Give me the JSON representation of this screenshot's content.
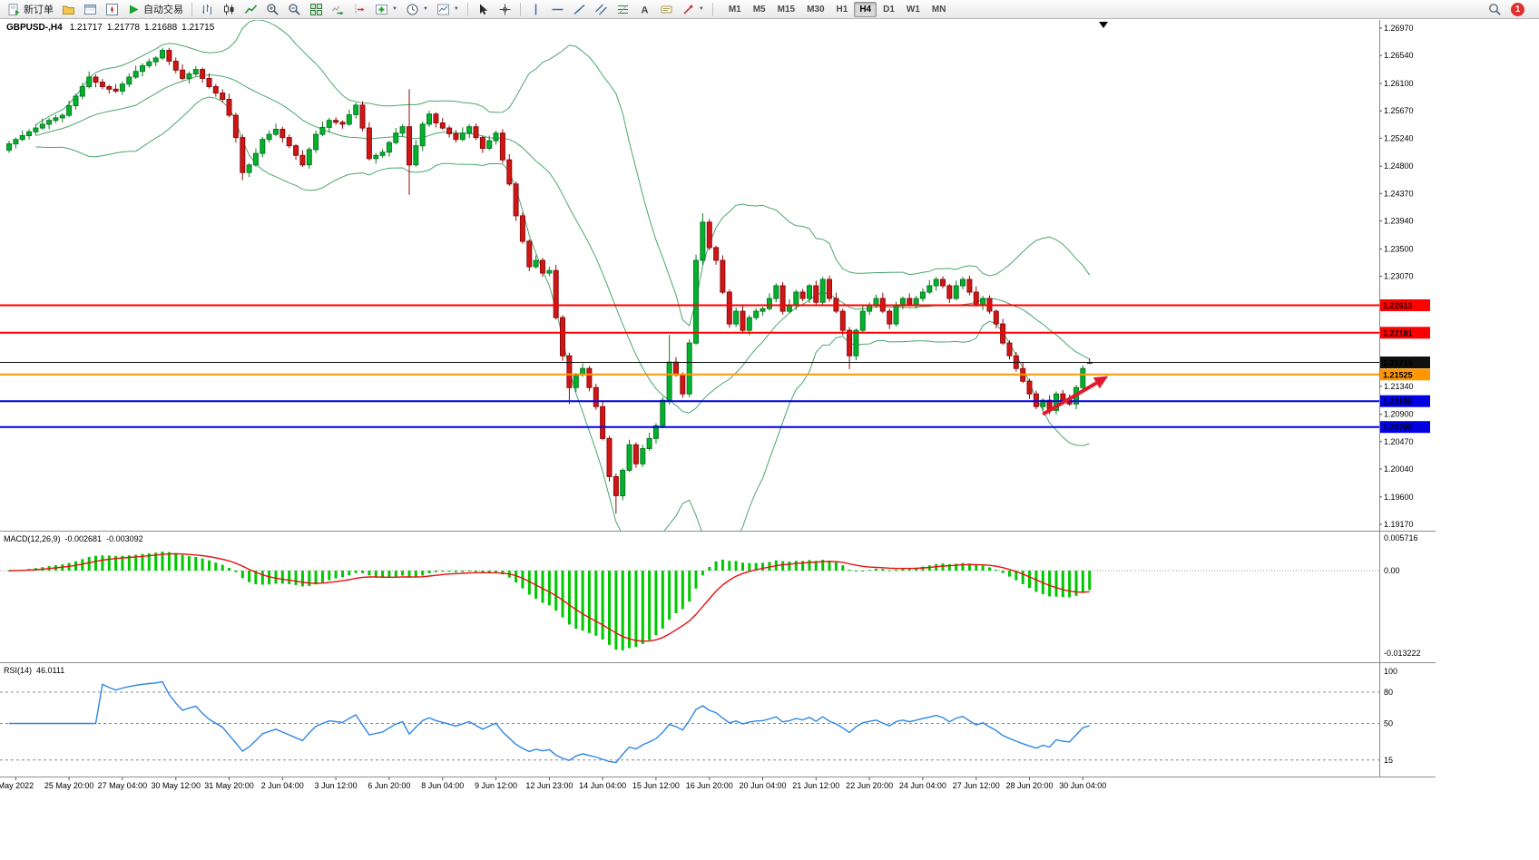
{
  "toolbar": {
    "new_order": "新订单",
    "autotrading": "自动交易",
    "timeframes": [
      "M1",
      "M5",
      "M15",
      "M30",
      "H1",
      "H4",
      "D1",
      "W1",
      "MN"
    ],
    "active_timeframe": "H4",
    "notification_count": "1"
  },
  "chart_header": {
    "symbol_period": "GBPUSD-,H4",
    "open": "1.21717",
    "high": "1.21778",
    "low": "1.21688",
    "close": "1.21715"
  },
  "price_axis_ticks": [
    "1.26970",
    "1.26540",
    "1.26100",
    "1.25670",
    "1.25240",
    "1.24800",
    "1.24370",
    "1.23940",
    "1.23500",
    "1.23070",
    "1.21340",
    "1.20900",
    "1.20470",
    "1.20040",
    "1.19600",
    "1.19170"
  ],
  "hlines": [
    {
      "label": "1.22613",
      "value": 1.22613,
      "color": "#FF0000"
    },
    {
      "label": "1.22181",
      "value": 1.22181,
      "color": "#FF0000"
    },
    {
      "label": "1.21525",
      "value": 1.21525,
      "color": "#FF9800"
    },
    {
      "label": "1.21106",
      "value": 1.21106,
      "color": "#0000E0"
    },
    {
      "label": "1.20700",
      "value": 1.207,
      "color": "#0000E0"
    }
  ],
  "current_price": {
    "label": "1.21715",
    "value": 1.21715,
    "color": "#101010"
  },
  "macd_panel": {
    "title": "MACD(12,26,9)",
    "value_main": "-0.002681",
    "value_signal": "-0.003092",
    "axis_max": "0.005716",
    "axis_zero": "0.00",
    "axis_min": "-0.013222"
  },
  "rsi_panel": {
    "title": "RSI(14)",
    "value": "46.0111",
    "axis_labels": [
      "100",
      "80",
      "50",
      "15"
    ],
    "levels": [
      80,
      50,
      15
    ]
  },
  "time_axis": [
    "May 2022",
    "25 May 20:00",
    "27 May 04:00",
    "30 May 12:00",
    "31 May 20:00",
    "2 Jun 04:00",
    "3 Jun 12:00",
    "6 Jun 20:00",
    "8 Jun 04:00",
    "9 Jun 12:00",
    "12 Jun 23:00",
    "14 Jun 04:00",
    "15 Jun 12:00",
    "16 Jun 20:00",
    "20 Jun 04:00",
    "21 Jun 12:00",
    "22 Jun 20:00",
    "24 Jun 04:00",
    "27 Jun 12:00",
    "28 Jun 20:00",
    "30 Jun 04:00"
  ],
  "colors": {
    "bull": "#00B22C",
    "bull_dark": "#0B7A24",
    "bear": "#D01616",
    "bear_dark": "#8E0C0C",
    "bands": "#4AA66E",
    "macd_hist": "#00C800",
    "macd_signal": "#E81010",
    "rsi_line": "#2E86E8",
    "arrow": "#E3192D"
  },
  "chart_data": {
    "type": "candlestick",
    "symbol": "GBPUSD-",
    "timeframe": "H4",
    "ylim": [
      1.1917,
      1.2697
    ],
    "bollinger": {
      "period": 20,
      "deviation": 2
    },
    "macd": {
      "fast": 12,
      "slow": 26,
      "signal": 9
    },
    "rsi": {
      "period": 14
    },
    "annotations": [
      {
        "type": "arrow",
        "from_bar": 155,
        "from_price": 1.209,
        "to_bar": 163.5,
        "to_price": 1.2142,
        "color": "#E3192D"
      }
    ],
    "candles": [
      [
        1.2505,
        1.252,
        1.2501,
        1.2515
      ],
      [
        1.2515,
        1.2525,
        1.2508,
        1.2522
      ],
      [
        1.2522,
        1.2536,
        1.2519,
        1.2528
      ],
      [
        1.2528,
        1.2538,
        1.2522,
        1.2534
      ],
      [
        1.2534,
        1.2546,
        1.2529,
        1.254
      ],
      [
        1.254,
        1.2555,
        1.2537,
        1.2546
      ],
      [
        1.2546,
        1.2556,
        1.2538,
        1.2552
      ],
      [
        1.2552,
        1.2561,
        1.2548,
        1.2556
      ],
      [
        1.2556,
        1.2563,
        1.2549,
        1.256
      ],
      [
        1.256,
        1.2583,
        1.2557,
        1.2575
      ],
      [
        1.2575,
        1.2594,
        1.2569,
        1.259
      ],
      [
        1.259,
        1.2611,
        1.2585,
        1.2605
      ],
      [
        1.2605,
        1.2629,
        1.2602,
        1.262
      ],
      [
        1.262,
        1.2624,
        1.2604,
        1.2612
      ],
      [
        1.2612,
        1.2617,
        1.2601,
        1.2605
      ],
      [
        1.2605,
        1.2608,
        1.2594,
        1.2601
      ],
      [
        1.2601,
        1.2609,
        1.2595,
        1.2598
      ],
      [
        1.2598,
        1.2613,
        1.2592,
        1.2609
      ],
      [
        1.2609,
        1.2626,
        1.2604,
        1.262
      ],
      [
        1.262,
        1.2638,
        1.2617,
        1.2629
      ],
      [
        1.2629,
        1.2642,
        1.2621,
        1.2638
      ],
      [
        1.2638,
        1.2649,
        1.2634,
        1.2644
      ],
      [
        1.2644,
        1.2653,
        1.2637,
        1.265
      ],
      [
        1.265,
        1.2666,
        1.2647,
        1.2662
      ],
      [
        1.2662,
        1.2666,
        1.2639,
        1.2645
      ],
      [
        1.2645,
        1.2651,
        1.2626,
        1.2631
      ],
      [
        1.2631,
        1.264,
        1.2615,
        1.2618
      ],
      [
        1.2618,
        1.2629,
        1.261,
        1.2625
      ],
      [
        1.2625,
        1.2637,
        1.2621,
        1.2632
      ],
      [
        1.2632,
        1.2635,
        1.2611,
        1.2618
      ],
      [
        1.2618,
        1.2626,
        1.2602,
        1.2605
      ],
      [
        1.2605,
        1.2609,
        1.2589,
        1.2595
      ],
      [
        1.2595,
        1.2601,
        1.258,
        1.2585
      ],
      [
        1.2585,
        1.2594,
        1.2557,
        1.256
      ],
      [
        1.256,
        1.2564,
        1.2517,
        1.2525
      ],
      [
        1.2525,
        1.253,
        1.2458,
        1.247
      ],
      [
        1.247,
        1.2485,
        1.2463,
        1.2482
      ],
      [
        1.2482,
        1.2508,
        1.2479,
        1.25
      ],
      [
        1.25,
        1.2526,
        1.2494,
        1.2522
      ],
      [
        1.2522,
        1.2536,
        1.2517,
        1.253
      ],
      [
        1.253,
        1.2547,
        1.2527,
        1.2538
      ],
      [
        1.2538,
        1.2542,
        1.2517,
        1.2525
      ],
      [
        1.2525,
        1.253,
        1.2508,
        1.2512
      ],
      [
        1.2512,
        1.2515,
        1.249,
        1.2497
      ],
      [
        1.2497,
        1.2505,
        1.2479,
        1.2482
      ],
      [
        1.2482,
        1.251,
        1.2476,
        1.2506
      ],
      [
        1.2506,
        1.2536,
        1.2501,
        1.253
      ],
      [
        1.253,
        1.255,
        1.2527,
        1.2541
      ],
      [
        1.2541,
        1.2556,
        1.2533,
        1.2552
      ],
      [
        1.2552,
        1.2557,
        1.2545,
        1.2549
      ],
      [
        1.2549,
        1.2552,
        1.2539,
        1.2546
      ],
      [
        1.2546,
        1.2569,
        1.2543,
        1.2561
      ],
      [
        1.2561,
        1.258,
        1.2555,
        1.2576
      ],
      [
        1.2576,
        1.2582,
        1.2535,
        1.254
      ],
      [
        1.254,
        1.2549,
        1.2489,
        1.2492
      ],
      [
        1.2492,
        1.2501,
        1.2484,
        1.2497
      ],
      [
        1.2497,
        1.2507,
        1.2493,
        1.2502
      ],
      [
        1.2502,
        1.252,
        1.2495,
        1.2517
      ],
      [
        1.2517,
        1.254,
        1.2514,
        1.2532
      ],
      [
        1.2532,
        1.2546,
        1.2526,
        1.2542
      ],
      [
        1.2542,
        1.2601,
        1.2435,
        1.2482
      ],
      [
        1.2482,
        1.2521,
        1.2479,
        1.2512
      ],
      [
        1.2512,
        1.255,
        1.2504,
        1.2546
      ],
      [
        1.2546,
        1.2567,
        1.2542,
        1.2562
      ],
      [
        1.2562,
        1.2565,
        1.2541,
        1.2548
      ],
      [
        1.2548,
        1.2556,
        1.2537,
        1.254
      ],
      [
        1.254,
        1.2544,
        1.2525,
        1.2531
      ],
      [
        1.2531,
        1.2537,
        1.2517,
        1.2522
      ],
      [
        1.2522,
        1.2541,
        1.2519,
        1.2532
      ],
      [
        1.2532,
        1.2546,
        1.2524,
        1.2542
      ],
      [
        1.2542,
        1.2547,
        1.2521,
        1.2525
      ],
      [
        1.2525,
        1.2528,
        1.2501,
        1.2508
      ],
      [
        1.2508,
        1.2528,
        1.2505,
        1.252
      ],
      [
        1.252,
        1.2536,
        1.2514,
        1.2532
      ],
      [
        1.2532,
        1.2538,
        1.2485,
        1.249
      ],
      [
        1.249,
        1.2499,
        1.2449,
        1.2452
      ],
      [
        1.2452,
        1.2456,
        1.2394,
        1.2402
      ],
      [
        1.2402,
        1.2407,
        1.2358,
        1.2362
      ],
      [
        1.2362,
        1.2365,
        1.2315,
        1.2322
      ],
      [
        1.2322,
        1.234,
        1.2319,
        1.2332
      ],
      [
        1.2332,
        1.2336,
        1.2306,
        1.2312
      ],
      [
        1.2312,
        1.2322,
        1.2307,
        1.2316
      ],
      [
        1.2316,
        1.2325,
        1.2239,
        1.2242
      ],
      [
        1.2242,
        1.2246,
        1.2174,
        1.2182
      ],
      [
        1.2182,
        1.2187,
        1.2106,
        1.2132
      ],
      [
        1.2132,
        1.2155,
        1.2125,
        1.2152
      ],
      [
        1.2152,
        1.217,
        1.2149,
        1.2162
      ],
      [
        1.2162,
        1.2166,
        1.2126,
        1.2132
      ],
      [
        1.2132,
        1.2138,
        1.2097,
        1.2102
      ],
      [
        1.2102,
        1.2111,
        1.2049,
        1.2052
      ],
      [
        1.2052,
        1.2056,
        1.1984,
        1.1992
      ],
      [
        1.1992,
        1.1997,
        1.1934,
        1.1962
      ],
      [
        1.1962,
        1.2005,
        1.1955,
        1.2002
      ],
      [
        1.2002,
        1.205,
        1.1999,
        1.2042
      ],
      [
        1.2042,
        1.2046,
        1.2006,
        1.2012
      ],
      [
        1.2012,
        1.2042,
        1.2007,
        1.2036
      ],
      [
        1.2036,
        1.2061,
        1.2033,
        1.2052
      ],
      [
        1.2052,
        1.2076,
        1.2044,
        1.2072
      ],
      [
        1.2072,
        1.2117,
        1.2068,
        1.2112
      ],
      [
        1.2112,
        1.2215,
        1.2105,
        1.2172
      ],
      [
        1.2172,
        1.218,
        1.2149,
        1.2152
      ],
      [
        1.2152,
        1.2156,
        1.2116,
        1.2122
      ],
      [
        1.2122,
        1.2208,
        1.2117,
        1.2202
      ],
      [
        1.2202,
        1.2341,
        1.2199,
        1.2332
      ],
      [
        1.2332,
        1.2406,
        1.2324,
        1.2392
      ],
      [
        1.2392,
        1.2397,
        1.2348,
        1.2352
      ],
      [
        1.2352,
        1.2355,
        1.2325,
        1.2332
      ],
      [
        1.2332,
        1.234,
        1.2279,
        1.2282
      ],
      [
        1.2282,
        1.2286,
        1.2226,
        1.2232
      ],
      [
        1.2232,
        1.2258,
        1.2227,
        1.2252
      ],
      [
        1.2252,
        1.2261,
        1.2219,
        1.2222
      ],
      [
        1.2222,
        1.2246,
        1.2214,
        1.2242
      ],
      [
        1.2242,
        1.2257,
        1.2238,
        1.2252
      ],
      [
        1.2252,
        1.2259,
        1.2245,
        1.2256
      ],
      [
        1.2256,
        1.228,
        1.2253,
        1.2272
      ],
      [
        1.2272,
        1.2296,
        1.2266,
        1.2292
      ],
      [
        1.2292,
        1.2298,
        1.2247,
        1.2252
      ],
      [
        1.2252,
        1.2271,
        1.2249,
        1.2262
      ],
      [
        1.2262,
        1.2286,
        1.2254,
        1.2282
      ],
      [
        1.2282,
        1.2287,
        1.2268,
        1.2272
      ],
      [
        1.2272,
        1.2295,
        1.2265,
        1.2292
      ],
      [
        1.2292,
        1.23,
        1.2263,
        1.2266
      ],
      [
        1.2266,
        1.2306,
        1.226,
        1.2302
      ],
      [
        1.2302,
        1.2308,
        1.2267,
        1.2272
      ],
      [
        1.2272,
        1.2281,
        1.2249,
        1.2252
      ],
      [
        1.2252,
        1.2256,
        1.2214,
        1.2222
      ],
      [
        1.2222,
        1.2227,
        1.2161,
        1.2182
      ],
      [
        1.2182,
        1.2225,
        1.2175,
        1.2222
      ],
      [
        1.2222,
        1.226,
        1.2219,
        1.2252
      ],
      [
        1.2252,
        1.2266,
        1.2246,
        1.2262
      ],
      [
        1.2262,
        1.2278,
        1.2257,
        1.2272
      ],
      [
        1.2272,
        1.2281,
        1.2249,
        1.2252
      ],
      [
        1.2252,
        1.2256,
        1.2224,
        1.2232
      ],
      [
        1.2232,
        1.2267,
        1.2228,
        1.2262
      ],
      [
        1.2262,
        1.2275,
        1.2255,
        1.2272
      ],
      [
        1.2272,
        1.228,
        1.2259,
        1.2262
      ],
      [
        1.2262,
        1.2276,
        1.2256,
        1.2272
      ],
      [
        1.2272,
        1.2288,
        1.2267,
        1.2282
      ],
      [
        1.2282,
        1.2301,
        1.2279,
        1.2292
      ],
      [
        1.2292,
        1.2306,
        1.2284,
        1.2302
      ],
      [
        1.2302,
        1.2307,
        1.2288,
        1.2292
      ],
      [
        1.2292,
        1.2295,
        1.2265,
        1.2272
      ],
      [
        1.2272,
        1.23,
        1.2269,
        1.2292
      ],
      [
        1.2292,
        1.2306,
        1.2286,
        1.2302
      ],
      [
        1.2302,
        1.2308,
        1.2277,
        1.2282
      ],
      [
        1.2282,
        1.2291,
        1.2259,
        1.2262
      ],
      [
        1.2262,
        1.2276,
        1.2254,
        1.2272
      ],
      [
        1.2272,
        1.2277,
        1.2248,
        1.2252
      ],
      [
        1.2252,
        1.2255,
        1.2225,
        1.2232
      ],
      [
        1.2232,
        1.224,
        1.2199,
        1.2202
      ],
      [
        1.2202,
        1.2206,
        1.2176,
        1.2182
      ],
      [
        1.2182,
        1.2188,
        1.2157,
        1.2162
      ],
      [
        1.2162,
        1.2171,
        1.2139,
        1.2142
      ],
      [
        1.2142,
        1.2146,
        1.2114,
        1.2122
      ],
      [
        1.2122,
        1.2127,
        1.2098,
        1.2102
      ],
      [
        1.2102,
        1.2115,
        1.2095,
        1.2112
      ],
      [
        1.2112,
        1.212,
        1.209,
        1.2096
      ],
      [
        1.2096,
        1.2126,
        1.209,
        1.2122
      ],
      [
        1.2122,
        1.2128,
        1.2107,
        1.2112
      ],
      [
        1.2112,
        1.2121,
        1.2103,
        1.2106
      ],
      [
        1.2106,
        1.2136,
        1.2098,
        1.2132
      ],
      [
        1.2132,
        1.2167,
        1.2128,
        1.2162
      ],
      [
        1.21717,
        1.21778,
        1.21688,
        1.21715
      ]
    ]
  }
}
